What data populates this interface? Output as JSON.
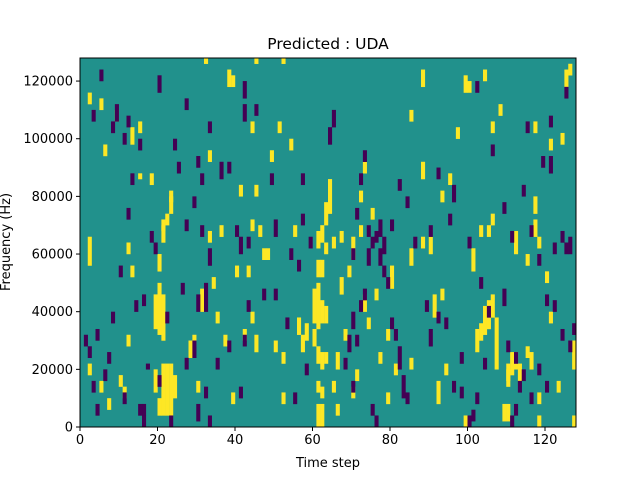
{
  "chart_data": {
    "type": "heatmap",
    "title": "Predicted : UDA",
    "xlabel": "Time step",
    "ylabel": "Frequency (Hz)",
    "xlim": [
      0,
      128
    ],
    "ylim": [
      0,
      128000
    ],
    "x_ticks": [
      0,
      20,
      40,
      60,
      80,
      100,
      120
    ],
    "y_ticks": [
      0,
      20000,
      40000,
      60000,
      80000,
      100000,
      120000
    ],
    "x_tick_labels": [
      "0",
      "20",
      "40",
      "60",
      "80",
      "100",
      "120"
    ],
    "y_tick_labels": [
      "0",
      "20000",
      "40000",
      "60000",
      "80000",
      "100000",
      "120000"
    ],
    "grid": false,
    "colormap": "viridis",
    "colors": {
      "low": "#440154",
      "mid": "#21918c",
      "high": "#fde725"
    },
    "background_value": 1,
    "n_time_steps": 128,
    "n_freq_bins": 128,
    "bin_width_hz": 1000,
    "high_cells": [
      [
        20,
        4000,
        10000
      ],
      [
        21,
        4000,
        22000
      ],
      [
        22,
        4000,
        22000
      ],
      [
        23,
        4000,
        22000
      ],
      [
        24,
        10000,
        18000
      ],
      [
        19,
        12000,
        20000
      ],
      [
        20,
        32000,
        50000
      ],
      [
        21,
        30000,
        46000
      ],
      [
        19,
        34000,
        46000
      ],
      [
        20,
        54000,
        60000
      ],
      [
        21,
        64000,
        70000
      ],
      [
        23,
        74000,
        80000
      ],
      [
        23,
        78000,
        82000
      ],
      [
        28,
        24000,
        30000
      ],
      [
        29,
        28000,
        32000
      ],
      [
        30,
        12000,
        16000
      ],
      [
        31,
        40000,
        48000
      ],
      [
        18,
        84000,
        88000
      ],
      [
        21,
        68000,
        72000
      ],
      [
        22,
        70000,
        74000
      ],
      [
        61,
        0,
        8000
      ],
      [
        62,
        0,
        8000
      ],
      [
        61,
        12000,
        16000
      ],
      [
        62,
        10000,
        14000
      ],
      [
        61,
        22000,
        28000
      ],
      [
        62,
        20000,
        26000
      ],
      [
        63,
        22000,
        26000
      ],
      [
        60,
        36000,
        48000
      ],
      [
        61,
        34000,
        50000
      ],
      [
        62,
        36000,
        44000
      ],
      [
        63,
        36000,
        42000
      ],
      [
        61,
        52000,
        58000
      ],
      [
        62,
        52000,
        58000
      ],
      [
        61,
        62000,
        68000
      ],
      [
        62,
        64000,
        70000
      ],
      [
        63,
        70000,
        78000
      ],
      [
        64,
        74000,
        86000
      ],
      [
        63,
        60000,
        64000
      ],
      [
        57,
        26000,
        32000
      ],
      [
        58,
        30000,
        36000
      ],
      [
        60,
        28000,
        34000
      ],
      [
        66,
        20000,
        26000
      ],
      [
        65,
        12000,
        16000
      ],
      [
        66,
        4000,
        8000
      ],
      [
        65,
        62000,
        66000
      ],
      [
        67,
        64000,
        68000
      ],
      [
        50,
        26000,
        30000
      ],
      [
        52,
        22000,
        26000
      ],
      [
        52,
        8000,
        12000
      ],
      [
        56,
        32000,
        38000
      ],
      [
        47,
        58000,
        62000
      ],
      [
        48,
        58000,
        62000
      ],
      [
        104,
        32000,
        42000
      ],
      [
        105,
        34000,
        44000
      ],
      [
        106,
        38000,
        46000
      ],
      [
        103,
        30000,
        36000
      ],
      [
        107,
        20000,
        38000
      ],
      [
        102,
        26000,
        34000
      ],
      [
        101,
        54000,
        62000
      ],
      [
        103,
        66000,
        70000
      ],
      [
        105,
        66000,
        70000
      ],
      [
        106,
        70000,
        74000
      ],
      [
        109,
        2000,
        8000
      ],
      [
        110,
        2000,
        8000
      ],
      [
        110,
        14000,
        22000
      ],
      [
        111,
        18000,
        26000
      ],
      [
        112,
        20000,
        26000
      ],
      [
        113,
        16000,
        22000
      ],
      [
        115,
        24000,
        28000
      ],
      [
        115,
        56000,
        60000
      ],
      [
        110,
        16000,
        20000
      ],
      [
        118,
        8000,
        12000
      ],
      [
        116,
        20000,
        26000
      ],
      [
        94,
        18000,
        22000
      ],
      [
        93,
        44000,
        48000
      ],
      [
        91,
        38000,
        46000
      ],
      [
        88,
        62000,
        66000
      ],
      [
        80,
        48000,
        56000
      ],
      [
        81,
        18000,
        22000
      ],
      [
        79,
        30000,
        34000
      ],
      [
        85,
        20000,
        24000
      ],
      [
        85,
        56000,
        62000
      ],
      [
        90,
        60000,
        66000
      ],
      [
        99,
        0,
        4000
      ],
      [
        92,
        8000,
        16000
      ],
      [
        88,
        86000,
        92000
      ],
      [
        95,
        84000,
        88000
      ],
      [
        93,
        78000,
        82000
      ],
      [
        104,
        120000,
        124000
      ],
      [
        99,
        116000,
        122000
      ],
      [
        108,
        108000,
        112000
      ],
      [
        106,
        102000,
        106000
      ],
      [
        117,
        102000,
        106000
      ],
      [
        121,
        96000,
        100000
      ],
      [
        124,
        98000,
        102000
      ],
      [
        125,
        118000,
        124000
      ],
      [
        126,
        122000,
        126000
      ],
      [
        127,
        20000,
        30000
      ],
      [
        127,
        0,
        4000
      ],
      [
        118,
        0,
        4000
      ],
      [
        123,
        12000,
        16000
      ],
      [
        120,
        50000,
        54000
      ],
      [
        121,
        36000,
        40000
      ],
      [
        118,
        62000,
        66000
      ],
      [
        117,
        66000,
        72000
      ],
      [
        112,
        60000,
        68000
      ],
      [
        117,
        74000,
        80000
      ],
      [
        44,
        68000,
        72000
      ],
      [
        43,
        52000,
        56000
      ],
      [
        44,
        36000,
        40000
      ],
      [
        45,
        26000,
        32000
      ],
      [
        46,
        66000,
        70000
      ],
      [
        49,
        92000,
        96000
      ],
      [
        51,
        102000,
        106000
      ],
      [
        54,
        96000,
        100000
      ],
      [
        55,
        66000,
        70000
      ],
      [
        41,
        80000,
        84000
      ],
      [
        42,
        30000,
        34000
      ],
      [
        40,
        52000,
        56000
      ],
      [
        39,
        8000,
        12000
      ],
      [
        37,
        28000,
        32000
      ],
      [
        33,
        64000,
        68000
      ],
      [
        33,
        92000,
        96000
      ],
      [
        34,
        48000,
        52000
      ],
      [
        36,
        66000,
        70000
      ],
      [
        35,
        36000,
        40000
      ],
      [
        38,
        118000,
        124000
      ],
      [
        39,
        118000,
        122000
      ],
      [
        44,
        102000,
        106000
      ],
      [
        45,
        80000,
        84000
      ],
      [
        32,
        126000,
        128000
      ],
      [
        45,
        126000,
        128000
      ],
      [
        52,
        126000,
        128000
      ],
      [
        76,
        44000,
        48000
      ],
      [
        77,
        22000,
        26000
      ],
      [
        72,
        66000,
        70000
      ],
      [
        73,
        40000,
        46000
      ],
      [
        70,
        58000,
        62000
      ],
      [
        74,
        34000,
        38000
      ],
      [
        68,
        30000,
        34000
      ],
      [
        67,
        46000,
        52000
      ],
      [
        69,
        52000,
        56000
      ],
      [
        70,
        62000,
        66000
      ],
      [
        72,
        78000,
        82000
      ],
      [
        75,
        72000,
        76000
      ],
      [
        73,
        88000,
        92000
      ],
      [
        70,
        10000,
        14000
      ],
      [
        71,
        16000,
        20000
      ],
      [
        79,
        8000,
        12000
      ],
      [
        85,
        106000,
        110000
      ],
      [
        88,
        118000,
        124000
      ],
      [
        97,
        100000,
        104000
      ],
      [
        100,
        116000,
        120000
      ],
      [
        15,
        86000,
        88000
      ],
      [
        15,
        102000,
        106000
      ],
      [
        9,
        106000,
        110000
      ],
      [
        6,
        94000,
        98000
      ],
      [
        5,
        110000,
        114000
      ],
      [
        2,
        112000,
        116000
      ],
      [
        2,
        56000,
        66000
      ],
      [
        12,
        60000,
        64000
      ],
      [
        12,
        28000,
        32000
      ],
      [
        10,
        14000,
        18000
      ],
      [
        5,
        12000,
        16000
      ],
      [
        7,
        6000,
        10000
      ],
      [
        2,
        18000,
        22000
      ],
      [
        11,
        10000,
        14000
      ],
      [
        13,
        52000,
        56000
      ],
      [
        13,
        98000,
        104000
      ]
    ],
    "low_cells": [
      [
        5,
        120000,
        124000
      ],
      [
        8,
        102000,
        106000
      ],
      [
        9,
        106000,
        112000
      ],
      [
        3,
        106000,
        110000
      ],
      [
        15,
        96000,
        100000
      ],
      [
        12,
        104000,
        108000
      ],
      [
        11,
        98000,
        102000
      ],
      [
        20,
        116000,
        122000
      ],
      [
        30,
        90000,
        94000
      ],
      [
        31,
        84000,
        88000
      ],
      [
        29,
        76000,
        80000
      ],
      [
        31,
        66000,
        70000
      ],
      [
        33,
        56000,
        62000
      ],
      [
        32,
        40000,
        50000
      ],
      [
        30,
        40000,
        46000
      ],
      [
        27,
        20000,
        24000
      ],
      [
        33,
        0,
        4000
      ],
      [
        30,
        2000,
        8000
      ],
      [
        32,
        10000,
        14000
      ],
      [
        29,
        24000,
        30000
      ],
      [
        20,
        14000,
        18000
      ],
      [
        17,
        20000,
        22000
      ],
      [
        14,
        40000,
        44000
      ],
      [
        7,
        22000,
        26000
      ],
      [
        4,
        30000,
        34000
      ],
      [
        6,
        16000,
        20000
      ],
      [
        4,
        4000,
        8000
      ],
      [
        3,
        12000,
        16000
      ],
      [
        16,
        4000,
        8000
      ],
      [
        16,
        0,
        4000
      ],
      [
        15,
        4000,
        8000
      ],
      [
        41,
        10000,
        14000
      ],
      [
        42,
        28000,
        32000
      ],
      [
        43,
        40000,
        44000
      ],
      [
        43,
        62000,
        66000
      ],
      [
        36,
        86000,
        92000
      ],
      [
        38,
        88000,
        92000
      ],
      [
        41,
        60000,
        66000
      ],
      [
        40,
        66000,
        70000
      ],
      [
        42,
        106000,
        112000
      ],
      [
        42,
        114000,
        120000
      ],
      [
        33,
        102000,
        106000
      ],
      [
        45,
        108000,
        112000
      ],
      [
        47,
        44000,
        48000
      ],
      [
        49,
        84000,
        88000
      ],
      [
        50,
        66000,
        72000
      ],
      [
        53,
        34000,
        38000
      ],
      [
        55,
        8000,
        12000
      ],
      [
        58,
        18000,
        22000
      ],
      [
        54,
        58000,
        62000
      ],
      [
        57,
        84000,
        88000
      ],
      [
        68,
        20000,
        24000
      ],
      [
        69,
        26000,
        32000
      ],
      [
        70,
        34000,
        40000
      ],
      [
        71,
        28000,
        32000
      ],
      [
        72,
        40000,
        44000
      ],
      [
        73,
        44000,
        48000
      ],
      [
        74,
        56000,
        62000
      ],
      [
        75,
        62000,
        66000
      ],
      [
        76,
        64000,
        68000
      ],
      [
        77,
        56000,
        62000
      ],
      [
        74,
        66000,
        70000
      ],
      [
        78,
        52000,
        56000
      ],
      [
        79,
        48000,
        52000
      ],
      [
        80,
        34000,
        38000
      ],
      [
        81,
        30000,
        34000
      ],
      [
        82,
        20000,
        28000
      ],
      [
        83,
        10000,
        18000
      ],
      [
        84,
        8000,
        12000
      ],
      [
        75,
        4000,
        8000
      ],
      [
        76,
        0,
        4000
      ],
      [
        70,
        12000,
        16000
      ],
      [
        70,
        58000,
        62000
      ],
      [
        71,
        72000,
        76000
      ],
      [
        72,
        84000,
        88000
      ],
      [
        73,
        92000,
        96000
      ],
      [
        77,
        66000,
        72000
      ],
      [
        78,
        60000,
        66000
      ],
      [
        80,
        68000,
        72000
      ],
      [
        82,
        82000,
        86000
      ],
      [
        84,
        76000,
        80000
      ],
      [
        86,
        62000,
        66000
      ],
      [
        89,
        40000,
        44000
      ],
      [
        90,
        28000,
        34000
      ],
      [
        92,
        36000,
        40000
      ],
      [
        94,
        34000,
        38000
      ],
      [
        96,
        12000,
        16000
      ],
      [
        98,
        10000,
        14000
      ],
      [
        100,
        0,
        4000
      ],
      [
        101,
        2000,
        6000
      ],
      [
        96,
        78000,
        84000
      ],
      [
        92,
        86000,
        90000
      ],
      [
        90,
        66000,
        70000
      ],
      [
        95,
        70000,
        74000
      ],
      [
        102,
        116000,
        120000
      ],
      [
        106,
        94000,
        98000
      ],
      [
        109,
        74000,
        78000
      ],
      [
        111,
        64000,
        68000
      ],
      [
        114,
        80000,
        84000
      ],
      [
        116,
        66000,
        70000
      ],
      [
        118,
        56000,
        60000
      ],
      [
        120,
        42000,
        46000
      ],
      [
        122,
        40000,
        44000
      ],
      [
        124,
        30000,
        34000
      ],
      [
        126,
        26000,
        30000
      ],
      [
        127,
        32000,
        36000
      ],
      [
        109,
        42000,
        48000
      ],
      [
        110,
        26000,
        30000
      ],
      [
        112,
        22000,
        26000
      ],
      [
        114,
        16000,
        20000
      ],
      [
        113,
        12000,
        16000
      ],
      [
        112,
        4000,
        8000
      ],
      [
        111,
        0,
        4000
      ],
      [
        116,
        8000,
        12000
      ],
      [
        118,
        18000,
        22000
      ],
      [
        120,
        12000,
        16000
      ],
      [
        122,
        60000,
        64000
      ],
      [
        124,
        64000,
        68000
      ],
      [
        125,
        60000,
        64000
      ],
      [
        126,
        60000,
        66000
      ],
      [
        119,
        90000,
        94000
      ],
      [
        121,
        88000,
        94000
      ],
      [
        115,
        102000,
        106000
      ],
      [
        121,
        104000,
        108000
      ],
      [
        125,
        114000,
        118000
      ],
      [
        100,
        62000,
        66000
      ],
      [
        103,
        48000,
        52000
      ],
      [
        104,
        20000,
        24000
      ],
      [
        105,
        38000,
        42000
      ],
      [
        102,
        8000,
        12000
      ],
      [
        98,
        22000,
        26000
      ],
      [
        2,
        24000,
        28000
      ],
      [
        1,
        28000,
        32000
      ],
      [
        8,
        36000,
        40000
      ],
      [
        10,
        52000,
        56000
      ],
      [
        12,
        72000,
        76000
      ],
      [
        13,
        84000,
        88000
      ],
      [
        18,
        64000,
        68000
      ],
      [
        19,
        60000,
        64000
      ],
      [
        16,
        42000,
        46000
      ],
      [
        11,
        8000,
        12000
      ],
      [
        23,
        0,
        4000
      ],
      [
        26,
        46000,
        50000
      ],
      [
        27,
        68000,
        72000
      ],
      [
        25,
        88000,
        92000
      ],
      [
        24,
        96000,
        100000
      ],
      [
        27,
        110000,
        114000
      ],
      [
        22,
        36000,
        40000
      ],
      [
        35,
        20000,
        24000
      ],
      [
        38,
        26000,
        30000
      ],
      [
        50,
        44000,
        48000
      ],
      [
        56,
        54000,
        58000
      ],
      [
        57,
        70000,
        74000
      ],
      [
        59,
        62000,
        66000
      ],
      [
        64,
        98000,
        104000
      ],
      [
        65,
        104000,
        110000
      ]
    ]
  }
}
